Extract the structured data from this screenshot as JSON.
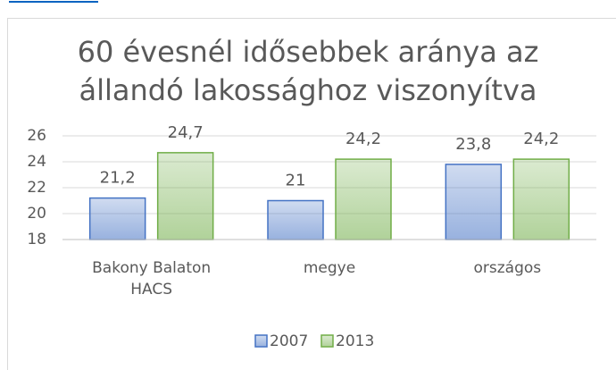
{
  "chart_data": {
    "type": "bar",
    "title": [
      "60 évesnél idősebbek aránya az",
      "állandó lakossághoz viszonyítva"
    ],
    "categories": [
      "Bakony Balaton HACS",
      "megye",
      "országos"
    ],
    "series": [
      {
        "name": "2007",
        "color": "#4472c4",
        "values": [
          21.2,
          21,
          23.8
        ],
        "value_labels": [
          "21,2",
          "21",
          "23,8"
        ]
      },
      {
        "name": "2013",
        "color": "#70ad47",
        "values": [
          24.7,
          24.2,
          24.2
        ],
        "value_labels": [
          "24,7",
          "24,2",
          "24,2"
        ]
      }
    ],
    "ylim": [
      18,
      26
    ],
    "yticks": [
      18,
      20,
      22,
      24,
      26
    ],
    "grid": true,
    "legend": "bottom"
  }
}
